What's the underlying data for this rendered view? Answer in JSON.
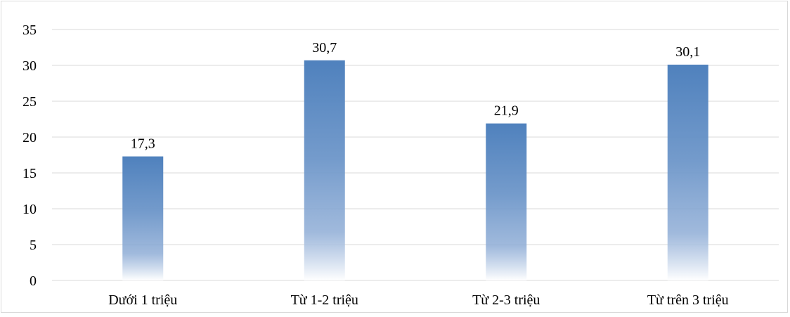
{
  "chart_data": {
    "type": "bar",
    "categories": [
      "Dưới 1 triệu",
      "Từ 1-2 triệu",
      "Từ 2-3 triệu",
      "Từ trên 3 triệu"
    ],
    "values": [
      17.3,
      30.7,
      21.9,
      30.1
    ],
    "data_labels": [
      "17,3",
      "30,7",
      "21,9",
      "30,1"
    ],
    "ylim": [
      0,
      35
    ],
    "yticks": [
      0,
      5,
      10,
      15,
      20,
      25,
      30,
      35
    ],
    "grid": true,
    "legend": "none",
    "bar_color": "#4f81bd",
    "grid_color": "#d9d9d9"
  }
}
